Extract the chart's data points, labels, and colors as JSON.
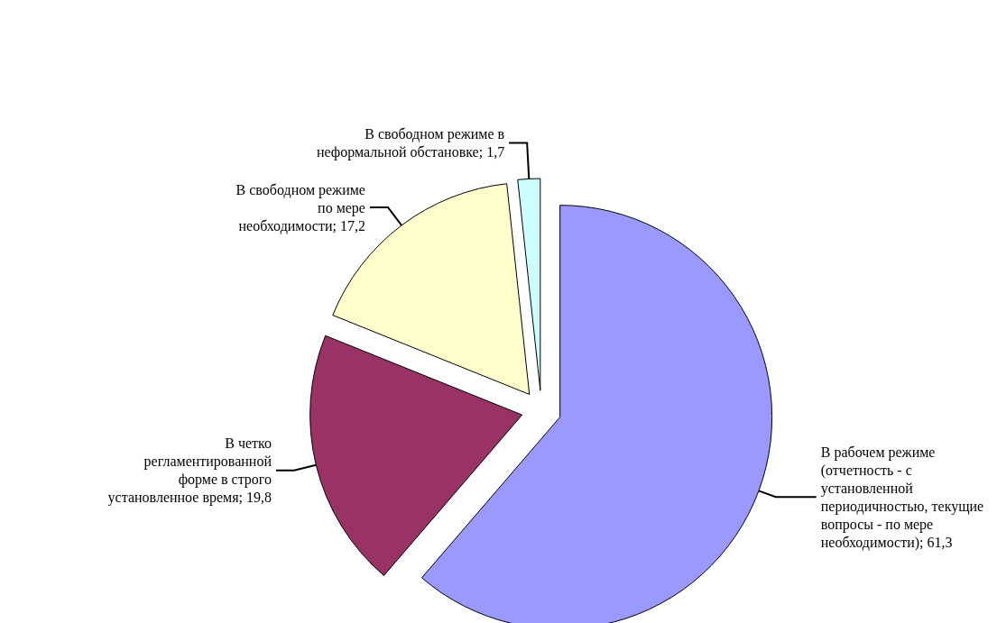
{
  "chart_data": {
    "type": "pie",
    "categories": [
      "В рабочем режиме (отчетность - с установленной периодичностью, текущие вопросы - по мере необходимости)",
      "В четко регламентированной форме в строго установленное время",
      "В свободном режиме по мере необходимости",
      "В свободном режиме в неформальной обстановке"
    ],
    "values": [
      61.3,
      19.8,
      17.2,
      1.7
    ],
    "colors": [
      "#9999ff",
      "#993366",
      "#ffffcc",
      "#ccffff"
    ],
    "value_labels": [
      "61,3",
      "19,8",
      "17,2",
      "1,7"
    ]
  }
}
